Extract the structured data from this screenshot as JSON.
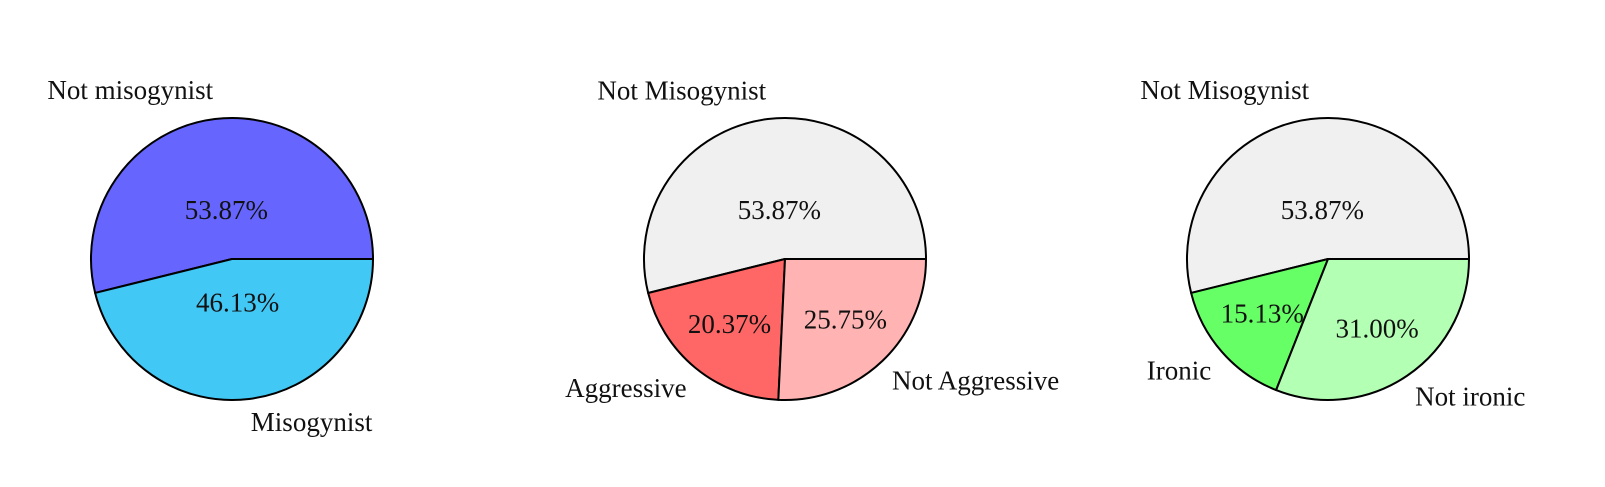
{
  "chart_data": [
    {
      "type": "pie",
      "categories": [
        "Not misogynist",
        "Misogynist"
      ],
      "values": [
        53.87,
        46.13
      ],
      "value_labels": [
        "53.87%",
        "46.13%"
      ],
      "colors": [
        "#6666ff",
        "#42c8f5"
      ]
    },
    {
      "type": "pie",
      "categories": [
        "Not Misogynist",
        "Aggressive",
        "Not Aggressive"
      ],
      "values": [
        53.87,
        20.37,
        25.75
      ],
      "value_labels": [
        "53.87%",
        "20.37%",
        "25.75%"
      ],
      "colors": [
        "#f0f0f0",
        "#ff6666",
        "#ffb3b3"
      ]
    },
    {
      "type": "pie",
      "categories": [
        "Not Misogynist",
        "Ironic",
        "Not ironic"
      ],
      "values": [
        53.87,
        15.13,
        31.0
      ],
      "value_labels": [
        "53.87%",
        "15.13%",
        "31.00%"
      ],
      "colors": [
        "#f0f0f0",
        "#66ff66",
        "#b3ffb3"
      ]
    }
  ]
}
